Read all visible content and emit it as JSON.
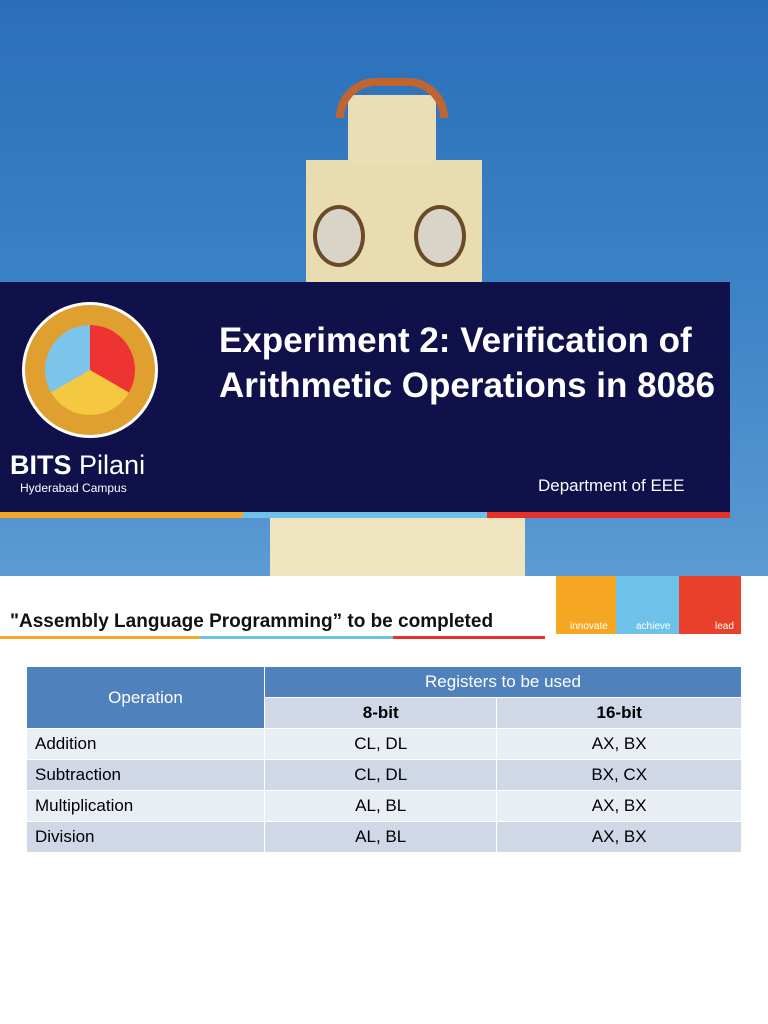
{
  "header": {
    "brand_bold": "BITS",
    "brand_rest": "Pilani",
    "campus": "Hyderabad Campus",
    "title": "Experiment 2: Verification of Arithmetic Operations in 8086",
    "department": "Department of  EEE"
  },
  "subtitle": "\"Assembly Language Programming” to be completed",
  "tagline": [
    "innovate",
    "achieve",
    "lead"
  ],
  "colors": {
    "navy": "#10104a",
    "orange": "#f5a623",
    "light_blue": "#6ec1e8",
    "red": "#e8302a",
    "table_header": "#4f81bd"
  },
  "table": {
    "col_operation": "Operation",
    "col_group": "Registers to be used",
    "col_8bit": "8-bit",
    "col_16bit": "16-bit",
    "rows": [
      [
        "Addition",
        "CL, DL",
        "AX, BX"
      ],
      [
        "Subtraction",
        "CL, DL",
        "BX, CX"
      ],
      [
        "Multiplication",
        "AL, BL",
        "AX, BX"
      ],
      [
        "Division",
        "AL, BL",
        "AX, BX"
      ]
    ]
  }
}
